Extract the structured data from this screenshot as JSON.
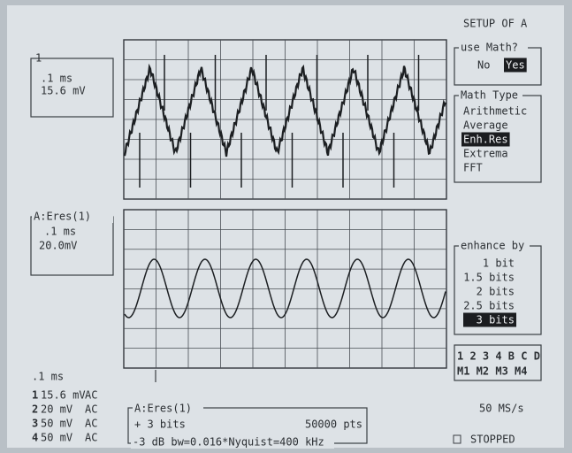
{
  "upper_trace": {
    "channel": "1",
    "timebase": ".1 ms",
    "scale": "15.6 mV"
  },
  "lower_trace": {
    "title": "A:Eres(1)",
    "timebase": ".1 ms",
    "scale": "20.0mV"
  },
  "status": {
    "timebase": ".1 ms",
    "channels": [
      {
        "id": "1",
        "scale": "15.6 mV",
        "coupling": "AC"
      },
      {
        "id": "2",
        "scale": "20 mV",
        "coupling": "AC"
      },
      {
        "id": "3",
        "scale": "50 mV",
        "coupling": "AC"
      },
      {
        "id": "4",
        "scale": "50 mV",
        "coupling": "AC"
      }
    ]
  },
  "info_box": {
    "title": "A:Eres(1)",
    "enhance": "+   3 bits",
    "points": "50000 pts",
    "bandwidth": "-3 dB bw=0.016*Nyquist=400 kHz"
  },
  "menu": {
    "title": "SETUP OF A",
    "use_math": {
      "label": "use Math?",
      "options": [
        "No",
        "Yes"
      ],
      "selected": 1
    },
    "math_type": {
      "label": "Math Type",
      "options": [
        "Arithmetic",
        "Average",
        "Enh.Res",
        "Extrema",
        "FFT"
      ],
      "selected": 2
    },
    "enhance_by": {
      "label": "enhance by",
      "options": [
        "1 bit",
        "1.5 bits",
        "2 bits",
        "2.5 bits",
        "3 bits"
      ],
      "selected": 4
    },
    "trace_select": {
      "row1": "1 2 3 4 B C D",
      "row2": "M1 M2 M3 M4"
    }
  },
  "sample_rate": "50 MS/s",
  "run_state": "STOPPED"
}
